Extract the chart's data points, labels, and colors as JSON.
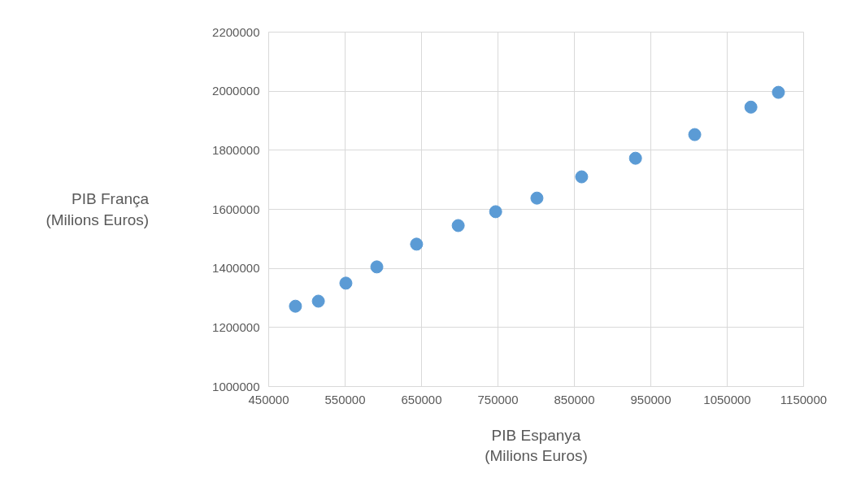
{
  "chart_data": {
    "type": "scatter",
    "xlabel": "PIB Espanya\n(Milions Euros)",
    "ylabel": "PIB França\n(Milions Euros)",
    "x": [
      485000,
      515000,
      551000,
      591500,
      643500,
      698000,
      747000,
      801000,
      859500,
      930000,
      1007500,
      1081000,
      1117000
    ],
    "series": [
      {
        "color": "#5b9bd5",
        "values": [
          1272000,
          1289000,
          1350000,
          1405000,
          1482000,
          1545000,
          1592000,
          1638000,
          1710000,
          1773000,
          1853000,
          1946000,
          1996000
        ]
      }
    ],
    "xlim": [
      450000,
      1150000
    ],
    "xticks": [
      450000,
      550000,
      650000,
      750000,
      850000,
      950000,
      1050000,
      1150000
    ],
    "ylim": [
      1000000,
      2200000
    ],
    "yticks": [
      1000000,
      1200000,
      1400000,
      1600000,
      1800000,
      2000000,
      2200000
    ],
    "grid": true,
    "marker": "circle"
  }
}
